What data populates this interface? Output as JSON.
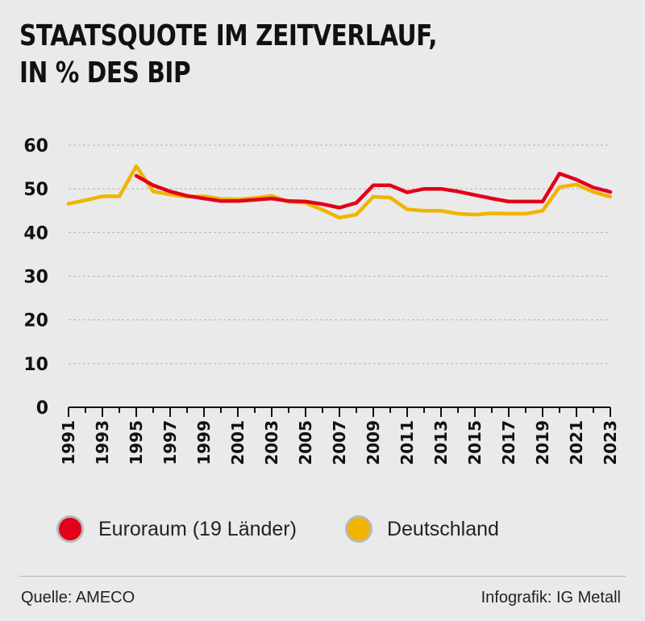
{
  "title": {
    "line1": "STAATSQUOTE IM ZEITVERLAUF,",
    "line2": "IN % DES BIP"
  },
  "footer": {
    "source": "Quelle: AMECO",
    "credit": "Infografik: IG Metall"
  },
  "chart_data": {
    "type": "line",
    "ylim": [
      0,
      60
    ],
    "yticks": [
      0,
      10,
      20,
      30,
      40,
      50,
      60
    ],
    "xlim": [
      1991,
      2023
    ],
    "xticks": [
      "1991",
      "1993",
      "1995",
      "1997",
      "1999",
      "2001",
      "2003",
      "2005",
      "2007",
      "2009",
      "2011",
      "2013",
      "2015",
      "2017",
      "2019",
      "2021",
      "2023"
    ],
    "grid": true,
    "legend_placement": "bottom",
    "series": [
      {
        "name": "Euroraum (19 Länder)",
        "color": "#e2001a",
        "x": [
          1995,
          1996,
          1997,
          1998,
          1999,
          2000,
          2001,
          2002,
          2003,
          2004,
          2005,
          2006,
          2007,
          2008,
          2009,
          2010,
          2011,
          2012,
          2013,
          2014,
          2015,
          2016,
          2017,
          2018,
          2019,
          2020,
          2021,
          2022,
          2023
        ],
        "y": [
          53.0,
          50.8,
          49.4,
          48.4,
          47.8,
          47.2,
          47.2,
          47.5,
          47.8,
          47.2,
          47.1,
          46.5,
          45.7,
          46.8,
          50.8,
          50.8,
          49.2,
          50.0,
          50.0,
          49.4,
          48.6,
          47.8,
          47.1,
          47.1,
          47.1,
          53.5,
          52.1,
          50.3,
          49.3
        ]
      },
      {
        "name": "Deutschland",
        "color": "#f0b400",
        "x": [
          1991,
          1992,
          1993,
          1994,
          1995,
          1996,
          1997,
          1998,
          1999,
          2000,
          2001,
          2002,
          2003,
          2004,
          2005,
          2006,
          2007,
          2008,
          2009,
          2010,
          2011,
          2012,
          2013,
          2014,
          2015,
          2016,
          2017,
          2018,
          2019,
          2020,
          2021,
          2022,
          2023
        ],
        "y": [
          46.6,
          47.4,
          48.3,
          48.3,
          55.2,
          49.4,
          48.7,
          48.2,
          48.3,
          47.7,
          47.6,
          47.9,
          48.4,
          47.0,
          46.8,
          45.2,
          43.4,
          44.1,
          48.2,
          48.0,
          45.3,
          45.0,
          45.0,
          44.3,
          44.1,
          44.4,
          44.3,
          44.3,
          45.0,
          50.4,
          51.0,
          49.3,
          48.2
        ]
      }
    ]
  }
}
